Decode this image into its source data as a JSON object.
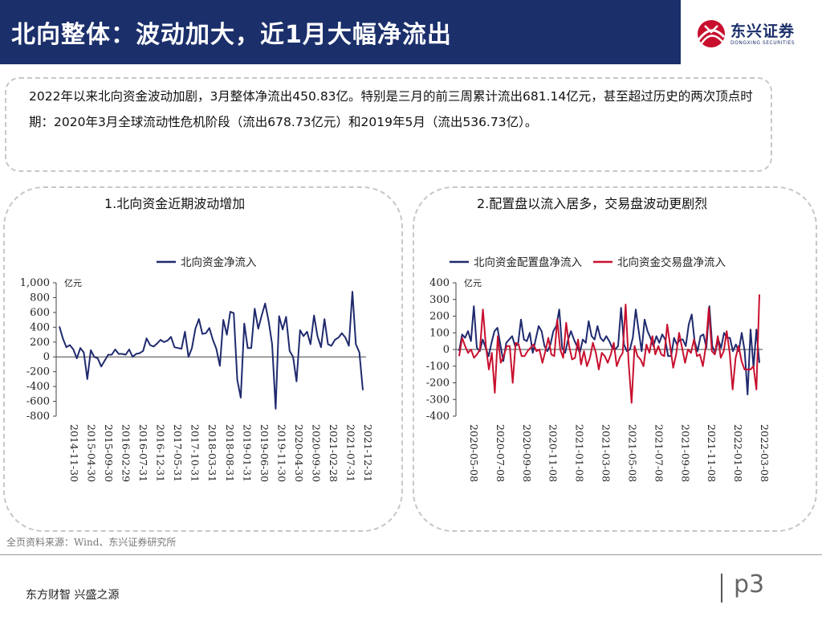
{
  "header": {
    "title": "北向整体：波动加大，近1月大幅净流出"
  },
  "logo": {
    "name": "东兴证券",
    "sub": "DONGXING SECURITIES"
  },
  "summary": {
    "text": "2022年以来北向资金波动加剧，3月整体净流出450.83亿。特别是三月的前三周累计流出681.14亿元，甚至超过历史的两次顶点时期：2020年3月全球流动性危机阶段（流出678.73亿元）和2019年5月（流出536.73亿）。"
  },
  "panels": {
    "left_title": "1.北向资金近期波动增加",
    "right_title": "2.配置盘以流入居多，交易盘波动更剧烈"
  },
  "footer": {
    "source": "全页资料来源：Wind、东兴证券研究所",
    "slogan": "东方财智 兴盛之源",
    "page": "p3"
  },
  "colors": {
    "navy": "#1b2f6b",
    "red": "#c8102e",
    "series_navy": "#1f2a6e"
  },
  "chart_data": [
    {
      "type": "line",
      "title": "1.北向资金近期波动增加",
      "unit_label": "亿元",
      "ylim": [
        -800,
        1000
      ],
      "yticks": [
        -800,
        -600,
        -400,
        -200,
        0,
        200,
        400,
        600,
        800,
        1000
      ],
      "ytick_labels": [
        "-800",
        "-600",
        "-400",
        "-200",
        "0",
        "200",
        "400",
        "600",
        "800",
        "1,000"
      ],
      "x_tick_labels": [
        "2014-11-30",
        "2015-04-30",
        "2015-09-30",
        "2016-02-29",
        "2016-07-31",
        "2016-12-31",
        "2017-05-31",
        "2017-10-31",
        "2018-03-31",
        "2018-08-31",
        "2019-01-31",
        "2019-06-30",
        "2019-11-30",
        "2020-04-30",
        "2020-09-30",
        "2021-02-28",
        "2021-07-31",
        "2021-12-31"
      ],
      "series": [
        {
          "name": "北向资金净流入",
          "color": "#1f2a6e",
          "values": [
            410,
            250,
            130,
            160,
            100,
            -20,
            120,
            60,
            -300,
            90,
            0,
            -20,
            -130,
            -50,
            30,
            30,
            100,
            40,
            40,
            30,
            100,
            0,
            40,
            50,
            80,
            250,
            160,
            140,
            180,
            230,
            200,
            220,
            270,
            130,
            120,
            110,
            340,
            0,
            120,
            380,
            510,
            310,
            320,
            390,
            230,
            110,
            -120,
            500,
            300,
            610,
            590,
            -310,
            -550,
            450,
            120,
            120,
            650,
            380,
            560,
            720,
            480,
            170,
            -700,
            550,
            370,
            540,
            80,
            0,
            -330,
            360,
            280,
            340,
            170,
            560,
            280,
            130,
            510,
            170,
            150,
            230,
            260,
            320,
            260,
            150,
            880,
            170,
            60,
            -450
          ]
        }
      ]
    },
    {
      "type": "line",
      "title": "2.配置盘以流入居多，交易盘波动更剧烈",
      "unit_label": "亿元",
      "ylim": [
        -400,
        400
      ],
      "yticks": [
        -400,
        -300,
        -200,
        -100,
        0,
        100,
        200,
        300,
        400
      ],
      "ytick_labels": [
        "-400",
        "-300",
        "-200",
        "-100",
        "0",
        "100",
        "200",
        "300",
        "400"
      ],
      "x_tick_labels": [
        "2020-05-08",
        "2020-07-08",
        "2020-09-08",
        "2020-11-08",
        "2021-01-08",
        "2021-03-08",
        "2021-05-08",
        "2021-07-08",
        "2021-09-08",
        "2021-11-08",
        "2022-01-08",
        "2022-03-08"
      ],
      "series": [
        {
          "name": "北向资金配置盘净流入",
          "color": "#1f2a6e",
          "values": [
            -10,
            90,
            70,
            110,
            50,
            260,
            10,
            -10,
            60,
            10,
            -40,
            40,
            110,
            130,
            30,
            -70,
            40,
            60,
            80,
            20,
            30,
            180,
            60,
            50,
            100,
            -20,
            60,
            140,
            110,
            20,
            -10,
            30,
            110,
            140,
            240,
            10,
            -20,
            60,
            110,
            60,
            20,
            -20,
            60,
            40,
            170,
            80,
            60,
            140,
            70,
            50,
            80,
            50,
            10,
            0,
            20,
            250,
            30,
            -10,
            0,
            70,
            240,
            110,
            -10,
            180,
            110,
            70,
            20,
            80,
            40,
            90,
            60,
            -40,
            -40,
            70,
            30,
            60,
            60,
            20,
            150,
            210,
            50,
            -10,
            80,
            90,
            10,
            260,
            20,
            -20,
            60,
            10,
            100,
            70,
            70,
            -10,
            30,
            -10,
            100,
            -10,
            -270,
            120,
            -110,
            120,
            -80
          ]
        },
        {
          "name": "北向资金交易盘净流入",
          "color": "#c8102e",
          "values": [
            -40,
            70,
            20,
            -20,
            0,
            -50,
            -30,
            0,
            240,
            20,
            -120,
            -20,
            -260,
            80,
            -80,
            -40,
            20,
            20,
            -200,
            40,
            30,
            -40,
            -40,
            -10,
            10,
            30,
            -10,
            0,
            -80,
            -10,
            70,
            -30,
            -40,
            180,
            0,
            -50,
            160,
            20,
            -60,
            -50,
            60,
            -90,
            -10,
            -100,
            -50,
            40,
            -20,
            -120,
            -20,
            -40,
            -80,
            -30,
            40,
            -100,
            -50,
            -20,
            270,
            -80,
            -320,
            20,
            -40,
            -60,
            -100,
            30,
            -20,
            80,
            -30,
            20,
            -30,
            -40,
            150,
            20,
            -110,
            -30,
            100,
            10,
            -80,
            0,
            -20,
            60,
            -40,
            -30,
            -100,
            20,
            250,
            -10,
            -30,
            80,
            -50,
            -10,
            110,
            -20,
            -240,
            -50,
            20,
            -70,
            -120,
            -120,
            -120,
            -100,
            -240,
            330
          ]
        }
      ]
    }
  ]
}
